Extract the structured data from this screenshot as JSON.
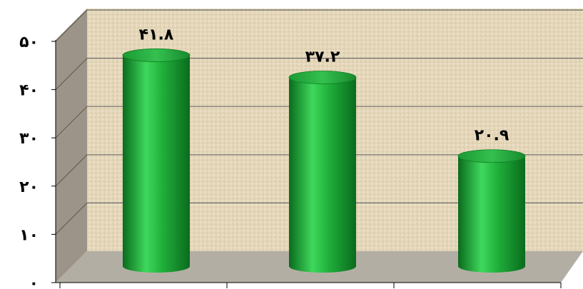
{
  "chart_data": {
    "type": "bar",
    "categories": [
      "",
      "",
      ""
    ],
    "values": [
      41.8,
      37.2,
      20.9
    ],
    "data_labels": [
      "۴۱.۸",
      "۳۷.۲",
      "۲۰.۹"
    ],
    "ylim": [
      0,
      50
    ],
    "yticks": [
      0,
      10,
      20,
      30,
      40,
      50
    ],
    "ytick_labels": [
      "۰",
      "۱۰",
      "۲۰",
      "۳۰",
      "۴۰",
      "۵۰"
    ],
    "grid": true,
    "bar_shape": "cylinder",
    "title": "",
    "xlabel": "",
    "ylabel": ""
  },
  "colors": {
    "bar_light": "#3fd85c",
    "bar_mid": "#1fae3a",
    "bar_dark": "#0a6b1d",
    "wall": "#e9dcc0",
    "floor": "#b3aea4",
    "side_wall": "#9c9488",
    "gridline": "#6e6e6e"
  }
}
